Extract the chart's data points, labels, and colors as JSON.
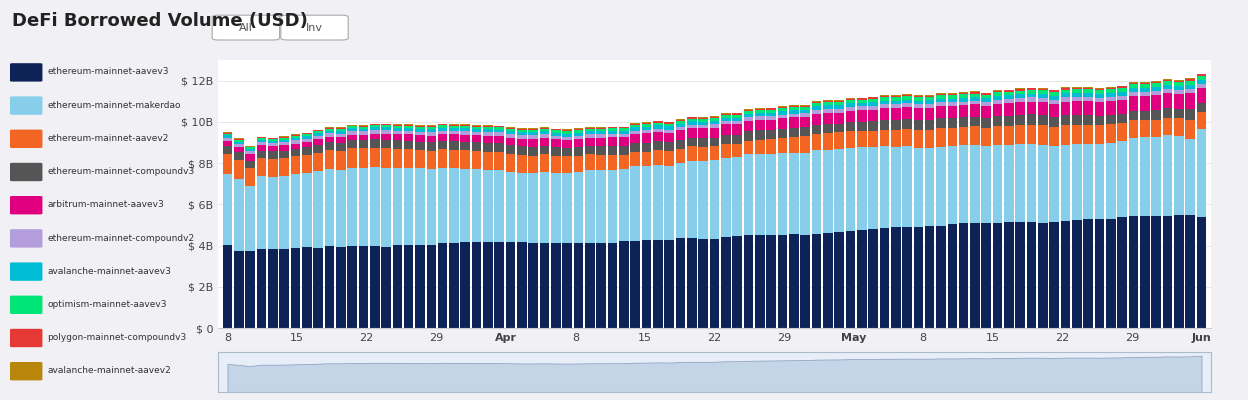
{
  "title": "DeFi Borrowed Volume (USD)",
  "background_color": "#f0f0f5",
  "plot_background": "#ffffff",
  "series": [
    {
      "label": "ethereum-mainnet-aavev3",
      "color": "#0d2257"
    },
    {
      "label": "ethereum-mainnet-makerdao",
      "color": "#87ceeb"
    },
    {
      "label": "ethereum-mainnet-aavev2",
      "color": "#f26522"
    },
    {
      "label": "ethereum-mainnet-compoundv3",
      "color": "#555555"
    },
    {
      "label": "arbitrum-mainnet-aavev3",
      "color": "#e0007f"
    },
    {
      "label": "ethereum-mainnet-compoundv2",
      "color": "#b39ddb"
    },
    {
      "label": "avalanche-mainnet-aavev3",
      "color": "#00bcd4"
    },
    {
      "label": "optimism-mainnet-aavev3",
      "color": "#00e676"
    },
    {
      "label": "polygon-mainnet-compoundv3",
      "color": "#e53935"
    },
    {
      "label": "avalanche-mainnet-aavev2",
      "color": "#b8860b"
    }
  ],
  "x_tick_labels": [
    "8",
    "15",
    "22",
    "29",
    "Apr",
    "8",
    "15",
    "22",
    "29",
    "May",
    "8",
    "15",
    "22",
    "29",
    "Jun"
  ],
  "y_tick_labels": [
    "$ 0",
    "$ 2B",
    "$ 4B",
    "$ 6B",
    "$ 8B",
    "$ 10B",
    "$ 12B"
  ],
  "n_bars": 87
}
